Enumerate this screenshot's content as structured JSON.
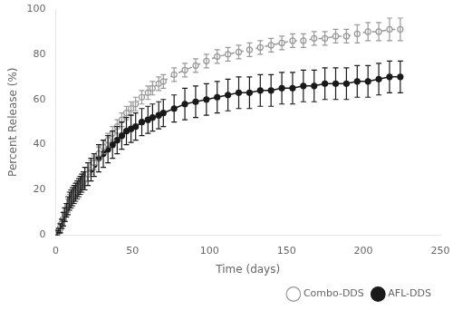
{
  "chart_data": {
    "type": "line",
    "xlabel": "Time (days)",
    "ylabel": "Percent Release (%)",
    "x": [
      0,
      1,
      2,
      3,
      4,
      5,
      6,
      7,
      8,
      9,
      10,
      11,
      12,
      13,
      14,
      15,
      16,
      17,
      18,
      19,
      21,
      23,
      25,
      28,
      31,
      34,
      37,
      40,
      43,
      46,
      49,
      52,
      56,
      60,
      63,
      67,
      70,
      77,
      84,
      91,
      98,
      105,
      112,
      119,
      126,
      133,
      140,
      147,
      154,
      161,
      168,
      175,
      182,
      189,
      196,
      203,
      210,
      217,
      224
    ],
    "series": [
      {
        "name": "Combo-DDS",
        "color": "#999999",
        "marker": "open_circle",
        "line_style": "dashed",
        "values": [
          0,
          1,
          2,
          3,
          5,
          7,
          9,
          11,
          13,
          15,
          16,
          17,
          18,
          19,
          20,
          21,
          22,
          23,
          24,
          25,
          27,
          30,
          32,
          36,
          39,
          42,
          45,
          48,
          51,
          54,
          56,
          58,
          61,
          63,
          65,
          67,
          68,
          71,
          73,
          75,
          77,
          79,
          80,
          81,
          82,
          83,
          84,
          85,
          86,
          86,
          87,
          87,
          88,
          88,
          89,
          90,
          90,
          91,
          91
        ],
        "error": [
          0,
          1,
          1,
          2,
          2,
          3,
          3,
          3,
          3,
          3,
          3,
          3,
          3,
          3,
          3,
          3,
          3,
          3,
          3,
          3,
          3,
          3,
          3,
          3,
          3,
          3,
          3,
          3,
          3,
          3,
          3,
          3,
          3,
          3,
          3,
          3,
          3,
          3,
          3,
          3,
          3,
          3,
          3,
          3,
          3,
          3,
          3,
          3,
          3,
          3,
          3,
          3,
          3,
          3,
          4,
          4,
          4,
          5,
          5
        ]
      },
      {
        "name": "AFL-DDS",
        "color": "#1a1a1a",
        "marker": "circle",
        "line_style": "solid",
        "values": [
          0,
          1,
          2,
          3,
          5,
          7,
          9,
          11,
          13,
          15,
          16,
          17,
          18,
          19,
          20,
          21,
          22,
          23,
          24,
          25,
          27,
          29,
          31,
          34,
          36,
          38,
          40,
          42,
          44,
          46,
          47,
          48,
          50,
          51,
          52,
          53,
          54,
          56,
          58,
          59,
          60,
          61,
          62,
          63,
          63,
          64,
          64,
          65,
          65,
          66,
          66,
          67,
          67,
          67,
          68,
          68,
          69,
          70,
          70
        ],
        "error": [
          0,
          1,
          1,
          2,
          2,
          3,
          3,
          3,
          4,
          4,
          4,
          4,
          4,
          4,
          4,
          4,
          4,
          4,
          4,
          5,
          5,
          5,
          5,
          6,
          6,
          6,
          6,
          6,
          6,
          6,
          6,
          6,
          6,
          6,
          6,
          6,
          6,
          6,
          7,
          7,
          7,
          7,
          7,
          7,
          7,
          7,
          7,
          7,
          7,
          7,
          7,
          7,
          7,
          7,
          7,
          7,
          7,
          7,
          7
        ]
      }
    ],
    "xlim": [
      0,
      250
    ],
    "ylim": [
      0,
      100
    ],
    "xticks": [
      0,
      50,
      100,
      150,
      200,
      250
    ],
    "yticks": [
      0,
      20,
      40,
      60,
      80,
      100
    ],
    "grid": false,
    "legend": "lower right"
  }
}
